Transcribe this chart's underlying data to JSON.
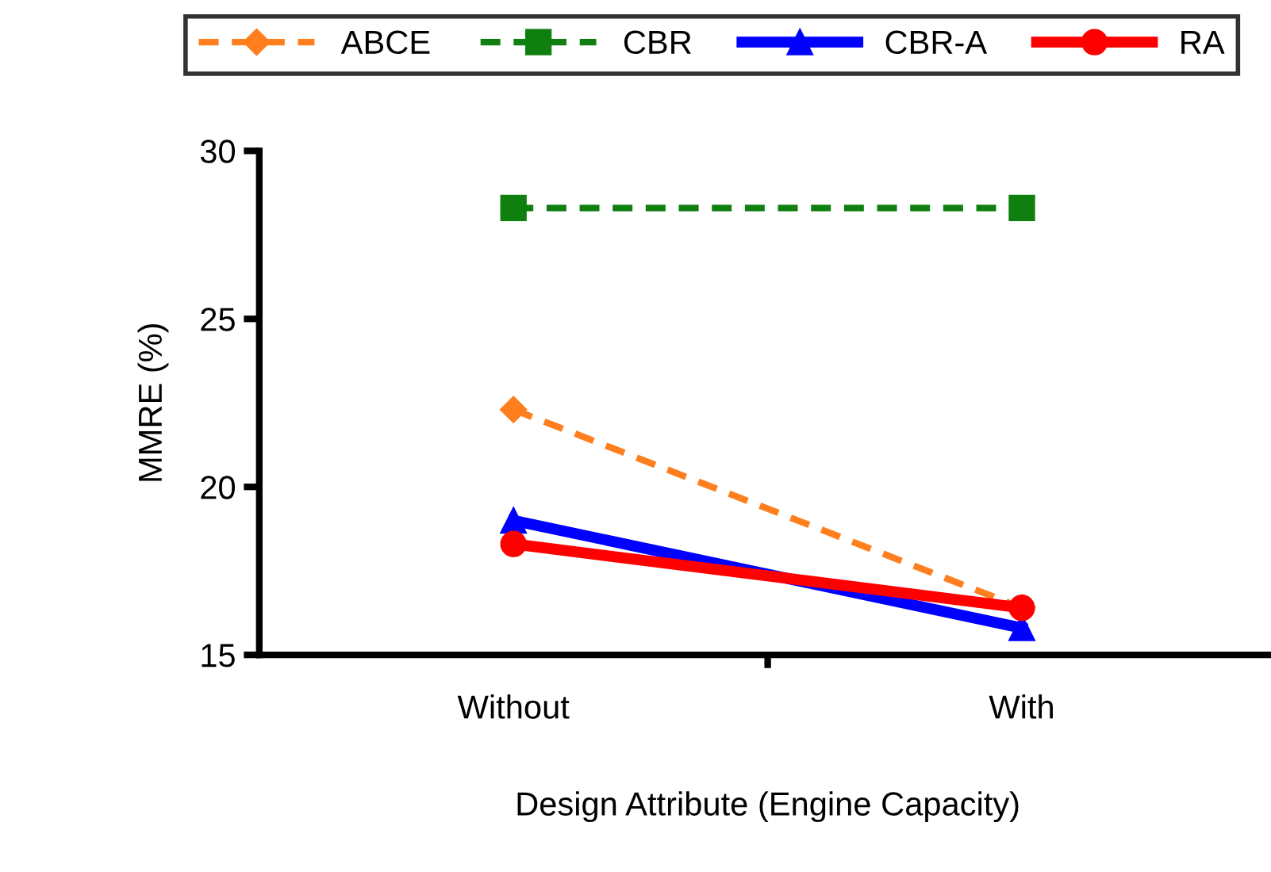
{
  "chart_data": {
    "type": "line",
    "xlabel": "Design Attribute (Engine Capacity)",
    "ylabel": "MMRE (%)",
    "categories": [
      "Without",
      "With"
    ],
    "series": [
      {
        "name": "ABCE",
        "color": "#ff7f1e",
        "values": [
          22.3,
          16.4
        ],
        "marker": "diamond",
        "line_style": "dashed"
      },
      {
        "name": "CBR",
        "color": "#0f800f",
        "values": [
          28.3,
          28.3
        ],
        "marker": "square",
        "line_style": "dashed"
      },
      {
        "name": "CBR-A",
        "color": "#0000ff",
        "values": [
          19.0,
          15.8
        ],
        "marker": "triangle",
        "line_style": "solid"
      },
      {
        "name": "RA",
        "color": "#ff0000",
        "values": [
          18.3,
          16.4
        ],
        "marker": "circle",
        "line_style": "solid"
      }
    ],
    "ylim": [
      15,
      30
    ],
    "yticks": [
      15,
      20,
      25,
      30
    ],
    "grid": false,
    "legend": "top"
  }
}
